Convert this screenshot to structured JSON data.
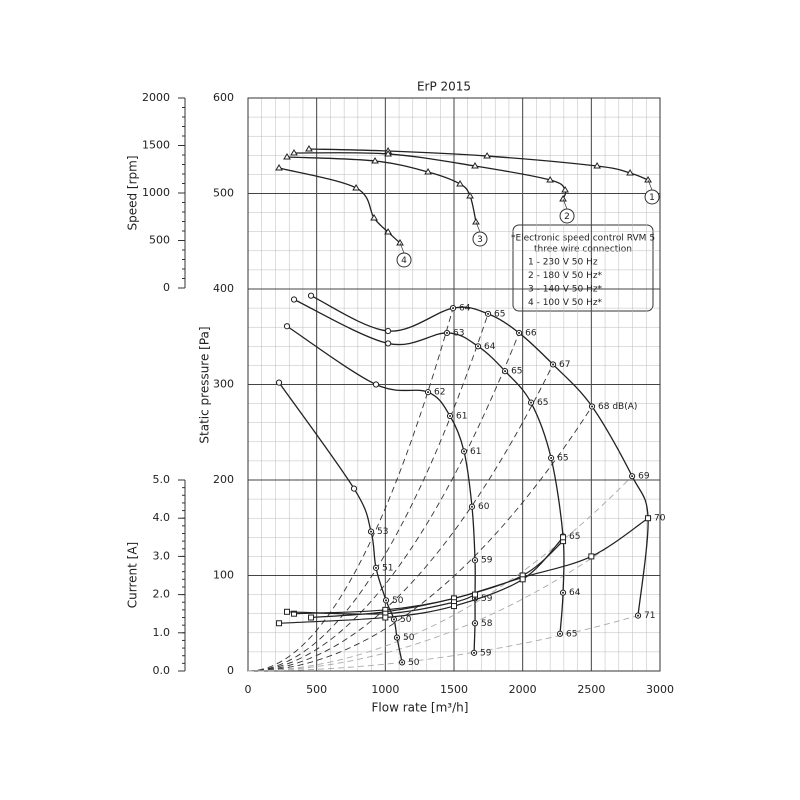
{
  "chart_data": {
    "type": "line",
    "title": "ErP 2015",
    "x_label": "Flow rate [m³/h]",
    "y_label": "Static pressure [Pa]",
    "speed_label": "Speed [rpm]",
    "current_label": "Current [A]",
    "xlim": [
      0,
      3000
    ],
    "xticks": [
      0,
      500,
      1000,
      1500,
      2000,
      2500,
      3000
    ],
    "ylim": [
      0,
      600
    ],
    "yticks": [
      0,
      100,
      200,
      300,
      400,
      500,
      600
    ],
    "speed_lim": [
      0,
      2000
    ],
    "speed_ticks": [
      0,
      500,
      1000,
      1500,
      2000
    ],
    "current_lim": [
      0,
      5
    ],
    "current_ticks": [
      {
        "value": 0,
        "label": "0.0"
      },
      {
        "value": 1,
        "label": "1.0"
      },
      {
        "value": 2,
        "label": "2.0"
      },
      {
        "value": 3,
        "label": "3.0"
      },
      {
        "value": 4,
        "label": "4.0"
      },
      {
        "value": 5,
        "label": "5.0"
      }
    ],
    "grid": true,
    "color": "#222222",
    "legend_title": [
      "*Electronic speed control RVM 5",
      "three wire connection"
    ],
    "series": [
      {
        "name": "1 - 230 V 50 Hz",
        "number": 1,
        "x": [
          459,
          1020,
          1493,
          1748,
          1974,
          2221,
          2505,
          2797,
          2913,
          2840
        ],
        "values": [
          393,
          356,
          380,
          374,
          354,
          321,
          277,
          204,
          160,
          58
        ],
        "sound": [
          null,
          null,
          64,
          65,
          66,
          67,
          68,
          69,
          70,
          71
        ],
        "value_labels": [
          null,
          null,
          "64",
          "65",
          "66",
          "67",
          "68 dB(A)",
          "69",
          "70",
          "71"
        ],
        "speed_x": [
          444,
          1020,
          1741,
          2542,
          2782,
          2913
        ],
        "speed": [
          1463,
          1442,
          1389,
          1284,
          1211,
          1137
        ],
        "current_x": [
          459,
          1000,
          1500,
          2000,
          2500,
          2913
        ],
        "current": [
          1.4,
          1.55,
          1.9,
          2.45,
          3.0,
          4.0
        ]
      },
      {
        "name": "2 - 180 V 50 Hz*",
        "number": 2,
        "x": [
          335,
          1020,
          1449,
          1675,
          1872,
          2061,
          2207,
          2294,
          2294,
          2272
        ],
        "values": [
          389,
          343,
          354,
          340,
          314,
          281,
          223,
          141,
          82,
          39
        ],
        "sound": [
          null,
          null,
          63,
          64,
          65,
          65,
          65,
          65,
          64,
          65
        ],
        "speed_x": [
          335,
          1020,
          1653,
          2200,
          2309,
          2294
        ],
        "speed": [
          1421,
          1411,
          1284,
          1137,
          1032,
          937
        ],
        "current_x": [
          335,
          1000,
          1500,
          2000,
          2294
        ],
        "current": [
          1.5,
          1.6,
          1.9,
          2.5,
          3.4
        ]
      },
      {
        "name": "3 - 140 V 50 Hz*",
        "number": 3,
        "x": [
          284,
          932,
          1311,
          1471,
          1573,
          1631,
          1653,
          1653,
          1653,
          1646
        ],
        "values": [
          361,
          300,
          292,
          267,
          230,
          172,
          116,
          76,
          50,
          19
        ],
        "sound": [
          null,
          null,
          62,
          61,
          61,
          60,
          59,
          59,
          58,
          59
        ],
        "speed_x": [
          284,
          925,
          1311,
          1544,
          1617,
          1660
        ],
        "speed": [
          1379,
          1337,
          1221,
          1095,
          968,
          695
        ],
        "current_x": [
          284,
          1000,
          1500,
          1653
        ],
        "current": [
          1.55,
          1.5,
          1.8,
          2.0
        ]
      },
      {
        "name": "4 - 100 V 50 Hz*",
        "number": 4,
        "x": [
          226,
          772,
          896,
          932,
          1005,
          1063,
          1085,
          1122
        ],
        "values": [
          302,
          191,
          146,
          108,
          74,
          54,
          35,
          9
        ],
        "sound": [
          null,
          null,
          53,
          51,
          50,
          50,
          50,
          50
        ],
        "speed_x": [
          226,
          787,
          918,
          1020,
          1107
        ],
        "speed": [
          1263,
          1053,
          737,
          589,
          474
        ],
        "current_x": [
          226,
          1000,
          1500,
          2000,
          2294
        ],
        "current": [
          1.25,
          1.4,
          1.7,
          2.4,
          3.5
        ]
      }
    ]
  }
}
